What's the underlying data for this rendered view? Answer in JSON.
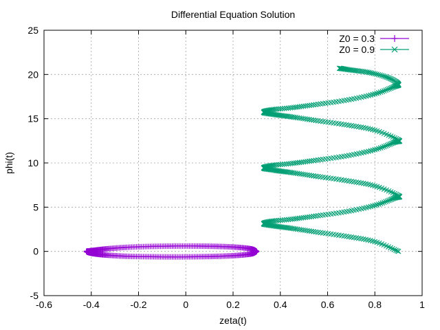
{
  "chart_data": {
    "type": "scatter",
    "title": "Differential Equation Solution",
    "xlabel": "zeta(t)",
    "ylabel": "phi(t)",
    "xlim": [
      -0.6,
      1.0
    ],
    "ylim": [
      -5,
      25
    ],
    "xticks": [
      "-0.6",
      "-0.4",
      "-0.2",
      "0",
      "0.2",
      "0.4",
      "0.6",
      "0.8",
      "1"
    ],
    "yticks": [
      "-5",
      "0",
      "5",
      "10",
      "15",
      "20",
      "25"
    ],
    "xtick_values": [
      -0.6,
      -0.4,
      -0.2,
      0,
      0.2,
      0.4,
      0.6,
      0.8,
      1.0
    ],
    "ytick_values": [
      -5,
      0,
      5,
      10,
      15,
      20,
      25
    ],
    "grid": true,
    "legend_position": "top-right",
    "series": [
      {
        "name": "Z0 = 0.3",
        "color": "#9400d3",
        "marker": "plus",
        "description_points": "closed loop",
        "points": [
          [
            0.3,
            0.0
          ],
          [
            0.28,
            0.27
          ],
          [
            0.22,
            0.46
          ],
          [
            0.14,
            0.56
          ],
          [
            0.05,
            0.6
          ],
          [
            -0.05,
            0.6
          ],
          [
            -0.15,
            0.56
          ],
          [
            -0.25,
            0.46
          ],
          [
            -0.33,
            0.3
          ],
          [
            -0.38,
            0.15
          ],
          [
            -0.41,
            0.05
          ],
          [
            -0.42,
            0.0
          ],
          [
            -0.41,
            -0.15
          ],
          [
            -0.38,
            -0.3
          ],
          [
            -0.33,
            -0.43
          ],
          [
            -0.25,
            -0.55
          ],
          [
            -0.15,
            -0.6
          ],
          [
            -0.05,
            -0.62
          ],
          [
            0.05,
            -0.6
          ],
          [
            0.14,
            -0.55
          ],
          [
            0.22,
            -0.45
          ],
          [
            0.28,
            -0.27
          ],
          [
            0.3,
            0.0
          ]
        ]
      },
      {
        "name": "Z0 = 0.9",
        "color": "#009e73",
        "marker": "cross",
        "points": [
          [
            0.9,
            0.0
          ],
          [
            0.8,
            1.1
          ],
          [
            0.68,
            1.7
          ],
          [
            0.55,
            2.2
          ],
          [
            0.45,
            2.6
          ],
          [
            0.38,
            2.85
          ],
          [
            0.33,
            3.1
          ],
          [
            0.36,
            3.4
          ],
          [
            0.45,
            3.65
          ],
          [
            0.55,
            4.0
          ],
          [
            0.68,
            4.5
          ],
          [
            0.8,
            5.2
          ],
          [
            0.88,
            6.0
          ],
          [
            0.9,
            6.3
          ],
          [
            0.8,
            7.4
          ],
          [
            0.68,
            8.0
          ],
          [
            0.55,
            8.5
          ],
          [
            0.45,
            8.9
          ],
          [
            0.38,
            9.15
          ],
          [
            0.33,
            9.4
          ],
          [
            0.36,
            9.7
          ],
          [
            0.45,
            9.95
          ],
          [
            0.55,
            10.3
          ],
          [
            0.68,
            10.8
          ],
          [
            0.8,
            11.5
          ],
          [
            0.88,
            12.3
          ],
          [
            0.9,
            12.6
          ],
          [
            0.8,
            13.7
          ],
          [
            0.68,
            14.3
          ],
          [
            0.55,
            14.8
          ],
          [
            0.45,
            15.2
          ],
          [
            0.38,
            15.45
          ],
          [
            0.33,
            15.7
          ],
          [
            0.36,
            16.0
          ],
          [
            0.45,
            16.25
          ],
          [
            0.55,
            16.6
          ],
          [
            0.68,
            17.1
          ],
          [
            0.8,
            17.8
          ],
          [
            0.88,
            18.6
          ],
          [
            0.9,
            18.9
          ],
          [
            0.86,
            19.6
          ],
          [
            0.78,
            20.2
          ],
          [
            0.7,
            20.5
          ],
          [
            0.65,
            20.7
          ]
        ]
      }
    ]
  }
}
